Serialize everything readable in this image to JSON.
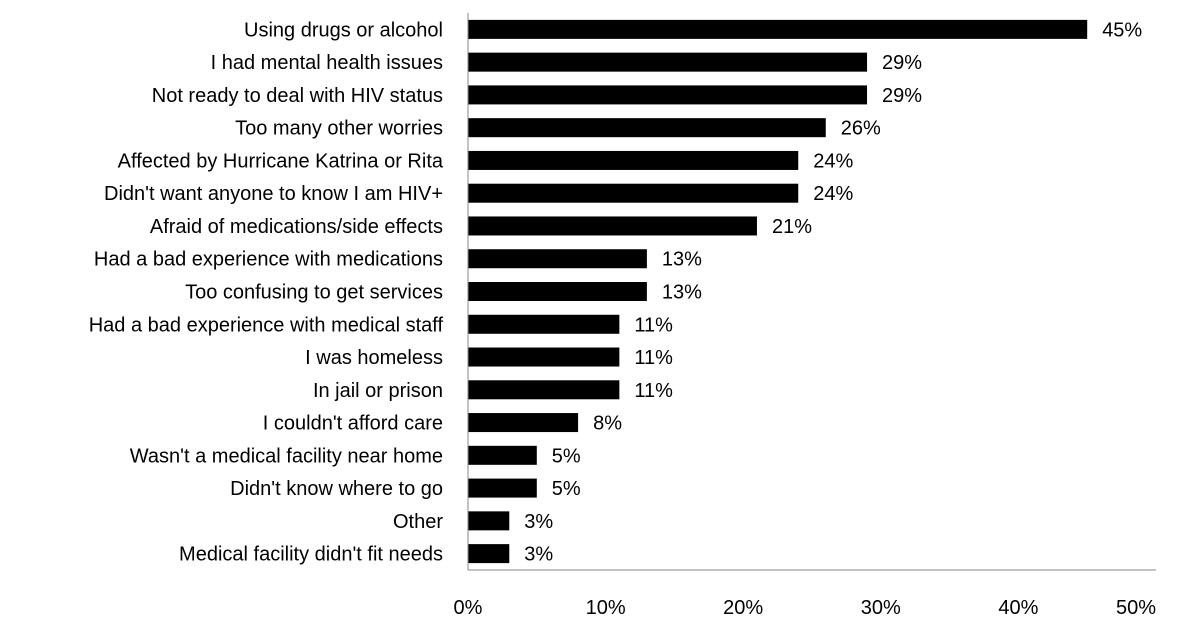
{
  "chart_data": {
    "type": "bar",
    "orientation": "horizontal",
    "categories": [
      "Using drugs or alcohol",
      "I had mental health issues",
      "Not ready to deal with HIV status",
      "Too many other worries",
      "Affected by Hurricane Katrina or Rita",
      "Didn't want anyone to know I am HIV+",
      "Afraid of medications/side effects",
      "Had a bad experience with medications",
      "Too confusing to get services",
      "Had a bad experience with medical staff",
      "I was homeless",
      "In jail or prison",
      "I couldn't afford care",
      "Wasn't a medical facility near home",
      "Didn't know where to go",
      "Other",
      "Medical facility didn't fit needs"
    ],
    "values": [
      45,
      29,
      29,
      26,
      24,
      24,
      21,
      13,
      13,
      11,
      11,
      11,
      8,
      5,
      5,
      3,
      3
    ],
    "value_labels": [
      "45%",
      "29%",
      "29%",
      "26%",
      "24%",
      "24%",
      "21%",
      "13%",
      "13%",
      "11%",
      "11%",
      "11%",
      "8%",
      "5%",
      "5%",
      "3%",
      "3%"
    ],
    "xticks": [
      0,
      10,
      20,
      30,
      40,
      50
    ],
    "xtick_labels": [
      "0%",
      "10%",
      "20%",
      "30%",
      "40%",
      "50%"
    ],
    "xlim": [
      0,
      50
    ],
    "bar_color": "#000000",
    "grid": false,
    "legend": false,
    "title": "",
    "xlabel": "",
    "ylabel": ""
  }
}
